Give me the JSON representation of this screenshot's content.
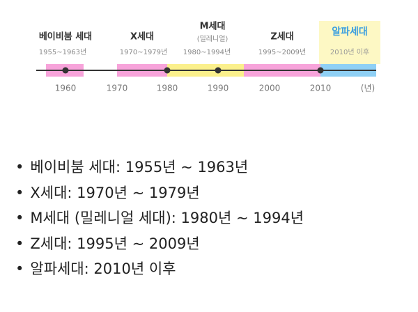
{
  "timeline": {
    "generations": [
      {
        "name": "베이비붐 세대",
        "range": "1955~1963년"
      },
      {
        "name": "X세대",
        "range": "1970~1979년"
      },
      {
        "name": "M세대",
        "note": "(밀레니얼)",
        "range": "1980~1994년"
      },
      {
        "name": "Z세대",
        "range": "1995~2009년"
      },
      {
        "name": "알파세대",
        "range": "2010년 이후"
      }
    ],
    "axis_labels": [
      "1960",
      "1970",
      "1980",
      "1990",
      "2000",
      "2010",
      "(년)"
    ]
  },
  "list": [
    "베이비붐 세대: 1955년 ~ 1963년",
    "X세대: 1970년 ~ 1979년",
    "M세대 (밀레니얼 세대): 1980년 ~ 1994년",
    "Z세대: 1995년 ~ 2009년",
    "알파세대: 2010년 이후"
  ]
}
